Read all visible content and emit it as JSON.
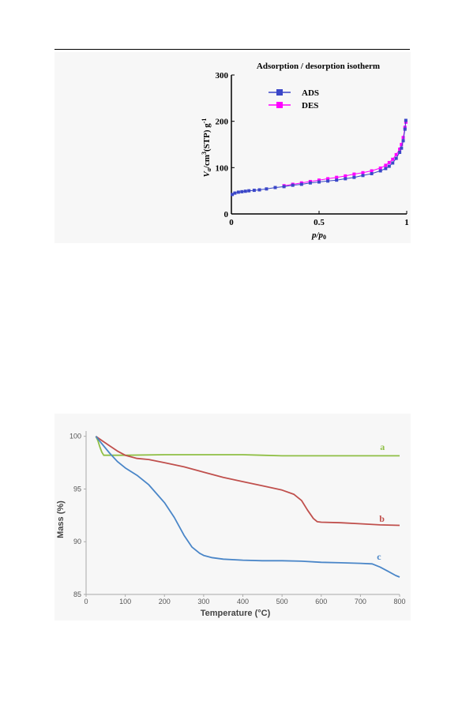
{
  "chart_data": [
    {
      "type": "line",
      "title": "Adsorption / desorption isotherm",
      "xlabel_prefix": "p",
      "xlabel_mid": "/p",
      "xlabel_sub": "0",
      "ylabel_prefix": "V",
      "ylabel_sub": "a",
      "ylabel_mid": "/cm",
      "ylabel_sup": "3",
      "ylabel_rest": "(STP) g",
      "ylabel_sup2": "-1",
      "xlim": [
        0,
        1
      ],
      "ylim": [
        0,
        300
      ],
      "xticks": [
        "0",
        "0.5",
        "1"
      ],
      "yticks": [
        "0",
        "100",
        "200",
        "300"
      ],
      "legend_position": "top-left",
      "series": [
        {
          "name": "ADS",
          "color": "#3b47c8",
          "marker": "square",
          "x": [
            0.005,
            0.02,
            0.04,
            0.06,
            0.08,
            0.1,
            0.13,
            0.16,
            0.2,
            0.25,
            0.3,
            0.35,
            0.4,
            0.45,
            0.5,
            0.55,
            0.6,
            0.65,
            0.7,
            0.75,
            0.8,
            0.85,
            0.88,
            0.9,
            0.92,
            0.94,
            0.96,
            0.97,
            0.98,
            0.99,
            0.995
          ],
          "y": [
            42,
            45,
            47,
            48,
            49,
            50,
            51,
            52,
            54,
            57,
            59,
            62,
            64,
            67,
            69,
            71,
            73,
            76,
            79,
            83,
            87,
            93,
            98,
            103,
            110,
            120,
            133,
            142,
            158,
            183,
            202
          ]
        },
        {
          "name": "DES",
          "color": "#ff00ff",
          "marker": "square",
          "x": [
            0.3,
            0.35,
            0.4,
            0.45,
            0.5,
            0.55,
            0.6,
            0.65,
            0.7,
            0.75,
            0.8,
            0.85,
            0.88,
            0.9,
            0.92,
            0.94,
            0.96,
            0.97,
            0.98,
            0.99,
            0.995
          ],
          "y": [
            61,
            64,
            67,
            70,
            73,
            76,
            79,
            82,
            86,
            89,
            93,
            99,
            105,
            111,
            118,
            128,
            140,
            150,
            165,
            187,
            198
          ]
        }
      ]
    },
    {
      "type": "line",
      "title": "",
      "xlabel": "Temperature (°C)",
      "ylabel": "Mass (%)",
      "xlim": [
        0,
        800
      ],
      "ylim": [
        85,
        100.5
      ],
      "xticks": [
        "0",
        "100",
        "200",
        "300",
        "400",
        "500",
        "600",
        "700",
        "800"
      ],
      "yticks": [
        "85",
        "90",
        "95",
        "100"
      ],
      "series": [
        {
          "name": "a",
          "color": "#8fbf45",
          "label_position": [
            750,
            98.7
          ],
          "x": [
            25,
            30,
            35,
            40,
            45,
            60,
            100,
            200,
            300,
            400,
            450,
            500,
            600,
            700,
            800
          ],
          "y": [
            100,
            99.6,
            99.0,
            98.5,
            98.2,
            98.2,
            98.2,
            98.25,
            98.25,
            98.25,
            98.2,
            98.15,
            98.15,
            98.15,
            98.15
          ]
        },
        {
          "name": "b",
          "color": "#c0504d",
          "label_position": [
            748,
            91.9
          ],
          "x": [
            25,
            40,
            60,
            80,
            100,
            130,
            160,
            200,
            250,
            300,
            350,
            400,
            450,
            500,
            530,
            550,
            565,
            580,
            590,
            600,
            650,
            700,
            750,
            800
          ],
          "y": [
            100,
            99.6,
            99.1,
            98.6,
            98.2,
            97.9,
            97.8,
            97.5,
            97.1,
            96.6,
            96.1,
            95.7,
            95.3,
            94.9,
            94.5,
            93.9,
            93.0,
            92.2,
            91.9,
            91.85,
            91.8,
            91.7,
            91.6,
            91.55
          ]
        },
        {
          "name": "c",
          "color": "#4a86c8",
          "label_position": [
            742,
            88.3
          ],
          "x": [
            25,
            40,
            60,
            80,
            100,
            130,
            160,
            200,
            225,
            250,
            270,
            290,
            300,
            320,
            350,
            400,
            450,
            500,
            550,
            600,
            650,
            700,
            730,
            750,
            770,
            790,
            800
          ],
          "y": [
            100,
            99.3,
            98.4,
            97.6,
            97.0,
            96.3,
            95.4,
            93.7,
            92.3,
            90.6,
            89.5,
            88.9,
            88.7,
            88.5,
            88.35,
            88.25,
            88.2,
            88.2,
            88.15,
            88.05,
            88.0,
            87.95,
            87.9,
            87.6,
            87.2,
            86.8,
            86.65
          ]
        }
      ]
    }
  ]
}
